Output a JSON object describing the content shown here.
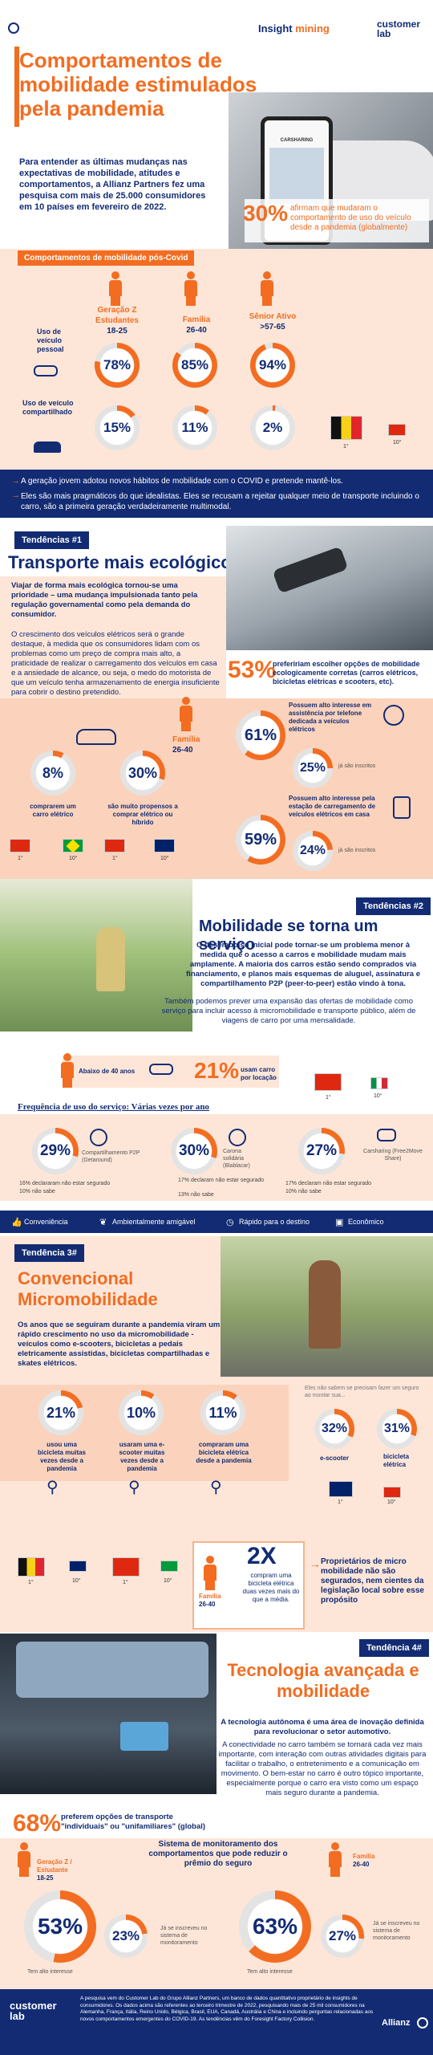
{
  "header": {
    "brand_a": "Insight",
    "brand_b": "mining",
    "cl1": "customer",
    "cl2": "lab",
    "cl3": "Lab"
  },
  "title": "Comportamentos de mobilidade estimulados pela pandemia",
  "intro": "Para entender as últimas mudanças nas expectativas de mobilidade, atitudes e comportamentos, a Allianz Partners fez uma pesquisa com mais de 25.000 consumidores em 10 países em fevereiro de 2022.",
  "hero": {
    "pct": "30%",
    "text": "afirmam que mudaram o comportamento de uso do veículo desde a pandemia (globalmente)",
    "phone": "CARSHARING"
  },
  "pos_covid": {
    "label": "Comportamentos de mobilidade pós-Covid",
    "groups": [
      {
        "name": "Geração Z Estudantes",
        "ages": "18-25"
      },
      {
        "name": "Família",
        "ages": "26-40"
      },
      {
        "name": "Sênior Ativo",
        "ages": ">57-65"
      }
    ],
    "rows": [
      {
        "label": "Uso de veículo pessoal",
        "values": [
          "78%",
          "85%",
          "94%"
        ],
        "nums": [
          78,
          85,
          94
        ]
      },
      {
        "label": "Uso de veículo compartilhado",
        "values": [
          "15%",
          "11%",
          "2%"
        ],
        "nums": [
          15,
          11,
          2
        ]
      }
    ],
    "ranks": [
      "1°",
      "10°"
    ]
  },
  "summary": [
    "A geração jovem adotou novos hábitos de mobilidade com o COVID e pretende mantê-los.",
    "Eles são mais pragmáticos do que idealistas. Eles se recusam a rejeitar qualquer meio de transporte incluindo o carro, são a primeira geração verdadeiramente multimodal."
  ],
  "t1": {
    "tag": "Tendências #1",
    "title": "Transporte mais ecológico",
    "p1": "Viajar de forma mais ecológica tornou-se uma prioridade – uma mudança impulsionada tanto pela regulação governamental como pela demanda do consumidor.",
    "p2": "O crescimento dos veículos elétricos será o grande destaque, à medida que os consumidores lidam com os problemas como um preço de compra mais alto, a praticidade de realizar o carregamento dos veículos em casa e a ansiedade de alcance, ou seja, o medo do motorista de que um veículo tenha armazenamento de energia insuficiente para cobrir o destino pretendido.",
    "stat53": "53%",
    "stat53_text": "prefeririam escolher opções de mobilidade ecologicamente corretas (carros elétricos, bicicletas elétricas e scooters, etc).",
    "family": "Família",
    "family_ages": "26-40",
    "r8": "8%",
    "r8_text": "comprarem um carro elétrico",
    "r30": "30%",
    "r30_text": "são muito propensos a comprar elétrico ou híbrido",
    "r61": "61%",
    "r61_text": "Possuem alto interesse em assistência por telefone dedicada a veículos elétricos",
    "r25": "25%",
    "r25_text": "já são inscritos",
    "r59": "59%",
    "r59_text": "Possuem alto interesse pela estação de carregamento de veículos elétricos em casa",
    "r24": "24%",
    "r24_text": "já são inscritos",
    "ranks": [
      "1°",
      "10°",
      "1°",
      "10°"
    ]
  },
  "t2": {
    "tag": "Tendências #2",
    "title": "Mobilidade se torna um serviço",
    "p1": "O desembolso inicial pode tornar-se um problema menor à medida que o acesso a carros e mobilidade mudam mais amplamente. A maioria dos carros estão sendo comprados via financiamento, e planos mais esquemas de aluguel, assinatura e compartilhamento P2P (peer-to-peer) estão vindo à tona.",
    "p2": "Também podemos prever uma expansão das ofertas de mobilidade como serviço para incluir acesso à micromobilidade e transporte público, além de viagens de carro por uma mensalidade.",
    "under40": "Abaixo de 40 anos",
    "r21": "21%",
    "r21_text": "usam carro por locação",
    "freq_title": "Frequência de uso do serviço: Várias vezes por ano",
    "c1": {
      "val": "29%",
      "num": 29,
      "label": "Compartilhamento P2P (Getaround)",
      "n1": "16% declararam não estar segurado",
      "n2": "10% não sabe"
    },
    "c2": {
      "val": "30%",
      "num": 30,
      "label": "Carona solidária (Blablacar)",
      "n1": "17% declaram não estar segurado",
      "n2": "13% não sabe"
    },
    "c3": {
      "val": "27%",
      "num": 27,
      "label": "Carsharing (Free2Move Share)",
      "n1": "17% declaram não estar segurado",
      "n2": "10% não sabe"
    },
    "ranks": [
      "1°",
      "10°"
    ]
  },
  "legend": [
    "Conveniência",
    "Ambientalmente amigável",
    "Rápido para o destino",
    "Econômico"
  ],
  "t3": {
    "tag": "Tendência 3#",
    "title": "Convencional Micromobilidade",
    "p1": "Os anos que se seguiram durante a pandemia viram um rápido crescimento no uso da micromobilidade - veículos como e-scooters, bicicletas a pedais eletricamente assistidas, bicicletas compartilhadas e skates elétricos.",
    "r21": "21%",
    "r21_text": "usou uma bicicleta muitas vezes desde a pandemia",
    "r10": "10%",
    "r10_text": "usaram uma e-scooter muitas vezes desde a pandemia",
    "r11": "11%",
    "r11_text": "compraram uma bicicleta elétrica desde a pandemia",
    "insure_q": "Eles não sabem se precisam fazer um seguro ao montar sua...",
    "r32": "32%",
    "r32_text": "e-scooter",
    "r31": "31%",
    "r31_text": "bicicleta elétrica",
    "x2": "2X",
    "x2_text": "compram uma bicicleta elétrica duas vezes mais do que a média.",
    "family": "Família",
    "family_ages": "26-40",
    "owners": "Proprietários de micro mobilidade não são segurados, nem cientes da legislação local sobre esse propósito",
    "ranks": [
      "1°",
      "10°",
      "1°",
      "10°",
      "1°",
      "10°"
    ]
  },
  "t4": {
    "tag": "Tendência 4#",
    "title": "Tecnologia avançada e mobilidade",
    "p1": "A tecnologia autônoma é uma área de inovação definida para revolucionar o setor automotivo.",
    "p2": "A conectividade no carro também se tornará cada vez mais importante, com interação com outras atividades digitais para facilitar o trabalho, o entretenimento e a comunicação em movimento. O bem-estar no carro é outro tópico importante, especialmente porque o carro era visto como um espaço mais seguro durante a pandemia.",
    "r68": "68%",
    "r68_text": "preferem opções de transporte \"individuais\" ou \"unifamiliares\" (global)",
    "monitor": "Sistema de monitoramento dos comportamentos que pode reduzir o prêmio do seguro",
    "g1": "Geração Z / Estudante",
    "g1_ages": "18-25",
    "g2": "Família",
    "g2_ages": "26-40",
    "r53": "53%",
    "r53_text": "Tem alto interesse",
    "r23": "23%",
    "r23_text": "Já se inscreveu no sistema de monitoramento",
    "r63": "63%",
    "r63_text": "Tem alto interesse",
    "r27": "27%",
    "r27_text": "Já se inscreveu no sistema de monitoramento"
  },
  "footer": {
    "cl1": "customer",
    "cl2": "lab",
    "text": "A pesquisa vem do Customer Lab do Grupo Allianz Partners, um banco de dados quantitativo proprietário de insights de consumidores. Os dados acima são referentes ao terceiro trimestre de 2022, pesquisando mais de 25 mil consumidores na Alemanha, França, Itália, Reino Unido, Bélgica, Brasil, EUA, Canadá, Austrália e China e incluindo perguntas relacionadas aos novos comportamentos emergentes do COVID-19. As tendências vêm do Foresight Factory Collision.",
    "brand": "Allianz"
  },
  "colors": {
    "orange": "#f26d21",
    "navy": "#122b73",
    "peach": "#fbd3bc",
    "light": "#fde6d8"
  }
}
